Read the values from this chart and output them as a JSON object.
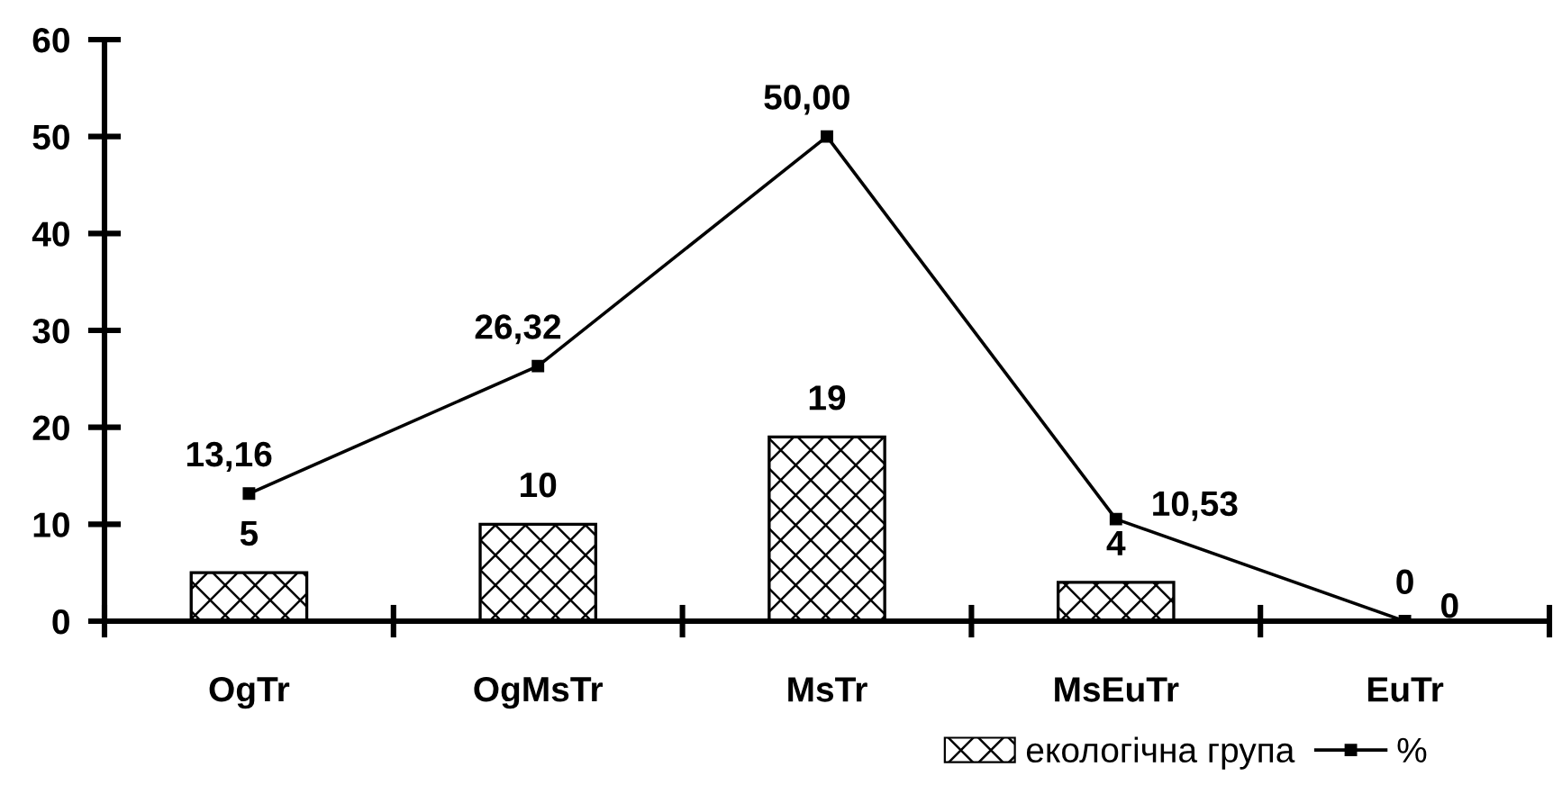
{
  "chart_data": {
    "type": "bar",
    "categories": [
      "OgTr",
      "OgMsTr",
      "MsTr",
      "MsEuTr",
      "EuTr"
    ],
    "series": [
      {
        "name": "екологічна група",
        "color": "#000000",
        "values": [
          5,
          10,
          19,
          4,
          0
        ],
        "value_labels": [
          "5",
          "10",
          "19",
          "4",
          "0"
        ]
      },
      {
        "name": "%",
        "type": "line",
        "color": "#000000",
        "values": [
          13.16,
          26.32,
          50.0,
          10.53,
          0
        ],
        "value_labels": [
          "13,16",
          "26,32",
          "50,00",
          "10,53",
          "0"
        ]
      }
    ],
    "ylim": [
      0,
      60
    ],
    "yticks": [
      0,
      10,
      20,
      30,
      40,
      50,
      60
    ],
    "grid": false,
    "legend": "bottom right",
    "marker": "square",
    "line_style": "solid"
  }
}
